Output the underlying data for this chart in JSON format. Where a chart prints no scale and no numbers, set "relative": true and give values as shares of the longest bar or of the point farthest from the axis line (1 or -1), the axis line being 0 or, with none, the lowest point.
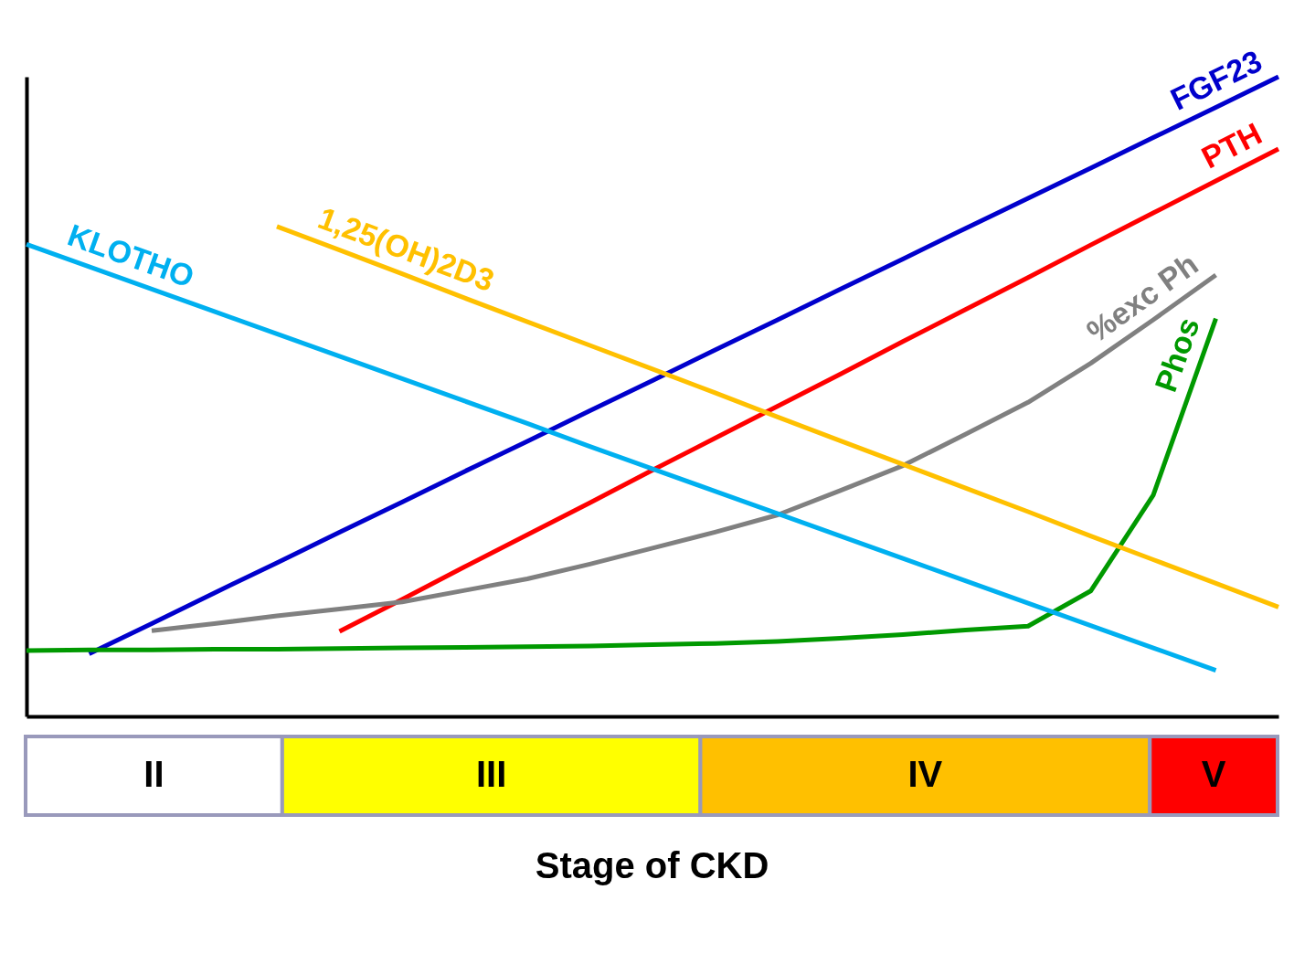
{
  "chart_data": [
    {
      "type": "line",
      "relative": true,
      "categories": [
        null,
        null,
        null,
        null,
        null,
        null,
        null,
        null,
        null,
        null,
        null,
        null,
        null,
        null,
        null,
        null,
        null,
        null,
        null,
        null,
        null
      ],
      "series": [
        {
          "name": "FGF23",
          "color": "#0000cc",
          "values": [
            null,
            0.098,
            0.145,
            0.193,
            0.24,
            0.288,
            0.335,
            0.383,
            0.43,
            0.478,
            0.525,
            0.573,
            0.62,
            0.668,
            0.715,
            0.763,
            0.81,
            0.857,
            0.905,
            0.952,
            1.0
          ]
        },
        {
          "name": "PTH",
          "color": "#ff0000",
          "values": [
            null,
            null,
            null,
            null,
            null,
            0.133,
            0.183,
            0.234,
            0.284,
            0.334,
            0.385,
            0.435,
            0.485,
            0.535,
            0.586,
            0.636,
            0.686,
            0.737,
            0.787,
            0.837,
            0.887
          ]
        },
        {
          "name": "%exc Ph",
          "color": "#808080",
          "values": [
            null,
            null,
            0.134,
            0.145,
            0.157,
            0.168,
            0.179,
            0.197,
            0.215,
            0.238,
            0.263,
            0.288,
            0.315,
            0.353,
            0.392,
            0.441,
            0.491,
            0.552,
            0.62,
            0.69,
            null
          ]
        },
        {
          "name": "Phos",
          "color": "#009900",
          "values": [
            0.103,
            0.104,
            0.104,
            0.105,
            0.105,
            0.106,
            0.107,
            0.108,
            0.109,
            0.11,
            0.112,
            0.114,
            0.117,
            0.122,
            0.128,
            0.135,
            0.141,
            0.196,
            0.346,
            0.622,
            null
          ]
        },
        {
          "name": "1,25(OH)2D3",
          "color": "#ffc000",
          "values": [
            null,
            null,
            null,
            null,
            0.766,
            0.729,
            0.692,
            0.654,
            0.617,
            0.58,
            0.543,
            0.506,
            0.468,
            0.431,
            0.394,
            0.357,
            0.32,
            0.282,
            0.245,
            0.208,
            0.171
          ]
        },
        {
          "name": "KLOTHO",
          "color": "#00b0f0",
          "values": [
            0.738,
            0.703,
            0.668,
            0.633,
            0.598,
            0.563,
            0.528,
            0.493,
            0.458,
            0.422,
            0.387,
            0.352,
            0.317,
            0.282,
            0.247,
            0.212,
            0.177,
            0.142,
            0.107,
            0.072,
            null
          ]
        }
      ]
    },
    {
      "type": "bar",
      "orientation": "horizontal",
      "stacked": true,
      "relative": true,
      "xlabel": "Stage of CKD",
      "categories": [
        null
      ],
      "series": [
        {
          "name": "II",
          "color": "#ffffff",
          "values": [
            0.205
          ]
        },
        {
          "name": "III",
          "color": "#ffff00",
          "values": [
            0.334
          ]
        },
        {
          "name": "IV",
          "color": "#ffc000",
          "values": [
            0.359
          ]
        },
        {
          "name": "V",
          "color": "#ff0000",
          "values": [
            0.102
          ]
        }
      ]
    }
  ]
}
